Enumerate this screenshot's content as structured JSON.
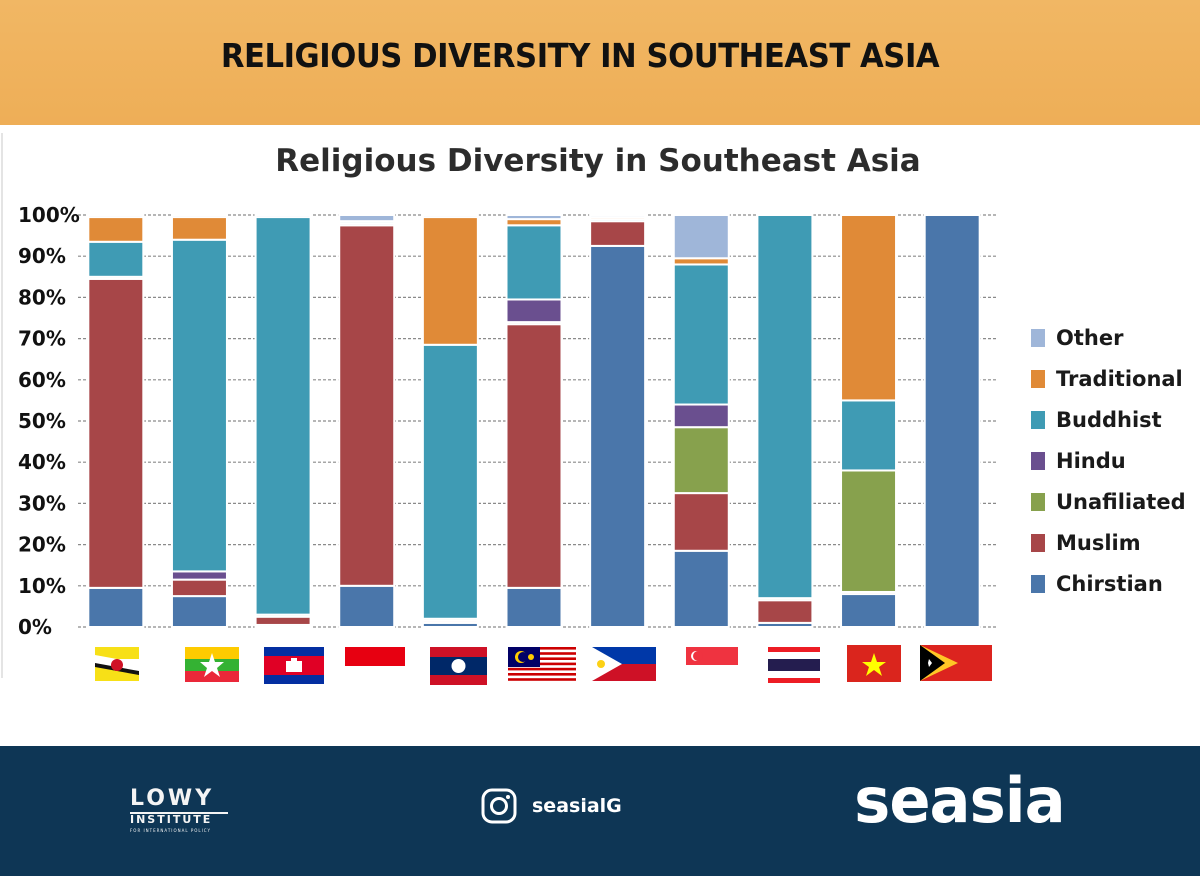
{
  "header": {
    "title": "RELIGIOUS DIVERSITY IN SOUTHEAST ASIA"
  },
  "chart_data": {
    "type": "bar",
    "stacked": true,
    "title": "Religious Diversity in Southeast Asia",
    "xlabel": "",
    "ylabel": "",
    "ylim": [
      0,
      100
    ],
    "y_ticks": [
      "0%",
      "10%",
      "20%",
      "30%",
      "40%",
      "50%",
      "60%",
      "70%",
      "80%",
      "90%",
      "100%"
    ],
    "grid": true,
    "legend_position": "right",
    "categories": [
      "Brunei",
      "Myanmar",
      "Cambodia",
      "Indonesia",
      "Laos",
      "Malaysia",
      "Philippines",
      "Singapore",
      "Thailand",
      "Vietnam",
      "Timor-Leste"
    ],
    "series": [
      {
        "name": "Chirstian",
        "color": "#4a76aa",
        "values": [
          9.5,
          7.5,
          0.5,
          10,
          1,
          9.5,
          92.5,
          18.5,
          1,
          8,
          100
        ]
      },
      {
        "name": "Muslim",
        "color": "#a74648",
        "values": [
          75,
          4,
          2,
          87.5,
          0.5,
          64,
          6,
          14,
          5.5,
          0.5,
          0
        ]
      },
      {
        "name": "Unafiliated",
        "color": "#87a14d",
        "values": [
          0.5,
          0,
          0.5,
          0,
          0.5,
          0.5,
          0,
          16,
          0.5,
          29.5,
          0
        ]
      },
      {
        "name": "Hindu",
        "color": "#6a4f8f",
        "values": [
          0,
          2,
          0,
          0.5,
          0,
          5.5,
          0,
          5.5,
          0,
          0,
          0
        ]
      },
      {
        "name": "Buddhist",
        "color": "#3f9bb4",
        "values": [
          8.5,
          80.5,
          96.5,
          0.5,
          66.5,
          18,
          0.5,
          34,
          93,
          17,
          0
        ]
      },
      {
        "name": "Traditional",
        "color": "#e08a37",
        "values": [
          6,
          5.5,
          0,
          0,
          31,
          1.5,
          0.5,
          1.5,
          0,
          45,
          0
        ]
      },
      {
        "name": "Other",
        "color": "#9fb6d9",
        "values": [
          0.5,
          0.5,
          0.5,
          1.5,
          0.5,
          1,
          0.5,
          10.5,
          0,
          0,
          0
        ]
      }
    ],
    "legend_order": [
      "Other",
      "Traditional",
      "Buddhist",
      "Hindu",
      "Unafiliated",
      "Muslim",
      "Chirstian"
    ]
  },
  "footer": {
    "logo_top": "LOWY",
    "logo_bottom": "INSTITUTE",
    "logo_tagline": "FOR INTERNATIONAL POLICY",
    "social_icon": "instagram-icon",
    "social_handle": "seasialG",
    "brand": "seasia"
  }
}
